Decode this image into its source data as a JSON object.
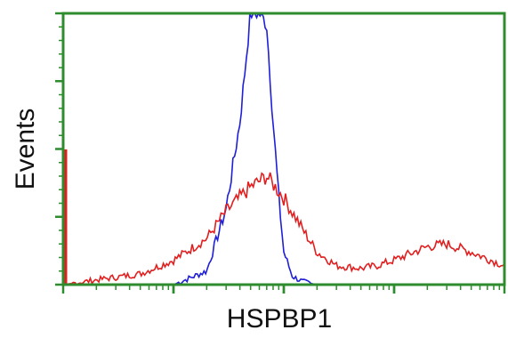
{
  "chart_data": {
    "type": "line",
    "title": "",
    "xlabel": "HSPBP1",
    "ylabel": "Events",
    "x_scale": "log",
    "xlim": [
      1,
      10000
    ],
    "ylim": [
      0,
      100
    ],
    "grid": false,
    "legend": "none",
    "frame_color": "#2e8b2e",
    "series": [
      {
        "color": "#1f1fd6",
        "x": [
          1,
          10,
          20,
          30,
          40,
          50,
          60,
          70,
          80,
          90,
          100,
          120,
          150,
          200,
          10000
        ],
        "y": [
          0,
          0,
          5,
          28,
          60,
          100,
          100,
          96,
          60,
          32,
          12,
          3,
          1,
          0,
          0
        ]
      },
      {
        "color": "#e02020",
        "x": [
          1,
          5,
          10,
          20,
          30,
          50,
          70,
          100,
          150,
          200,
          300,
          500,
          700,
          1000,
          2000,
          3000,
          5000,
          10000
        ],
        "y": [
          0,
          4,
          9,
          17,
          27,
          36,
          40,
          32,
          20,
          12,
          7,
          6,
          7,
          9,
          14,
          15,
          12,
          7
        ]
      }
    ]
  }
}
